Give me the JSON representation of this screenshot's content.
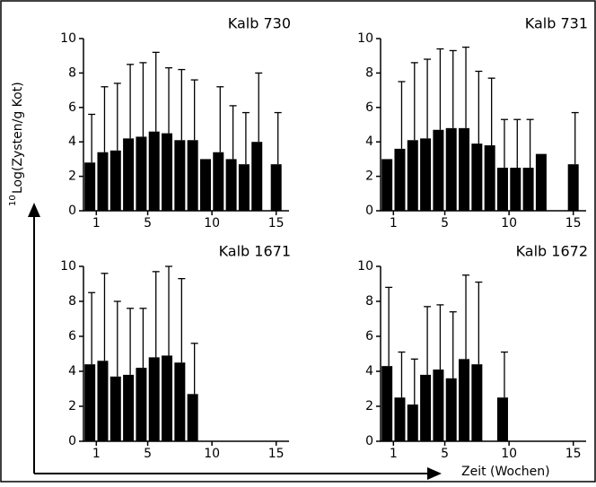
{
  "y_label_superscript": "10",
  "y_label": "Log(Zysten/g Kot)",
  "x_label": "Zeit (Wochen)",
  "chart_data": [
    {
      "type": "bar",
      "title": "Kalb 730",
      "color": "#000000",
      "xlim": [
        0,
        16
      ],
      "xticks": [
        1,
        5,
        10,
        15
      ],
      "ylim": [
        0,
        10
      ],
      "yticks": [
        0,
        2,
        4,
        6,
        8,
        10
      ],
      "x": [
        0.5,
        1.5,
        2.5,
        3.5,
        4.5,
        5.5,
        6.5,
        7.5,
        8.5,
        9.5,
        10.5,
        11.5,
        12.5,
        13.5,
        15
      ],
      "values": [
        2.8,
        3.4,
        3.5,
        4.2,
        4.3,
        4.6,
        4.5,
        4.1,
        4.1,
        3.0,
        3.4,
        3.0,
        2.7,
        4.0,
        2.7
      ],
      "errors": [
        2.8,
        3.8,
        3.9,
        4.3,
        4.3,
        4.6,
        3.8,
        4.1,
        3.5,
        null,
        3.8,
        3.1,
        3.0,
        4.0,
        3.0
      ]
    },
    {
      "type": "bar",
      "title": "Kalb 731",
      "color": "#000000",
      "xlim": [
        0,
        16
      ],
      "xticks": [
        1,
        5,
        10,
        15
      ],
      "ylim": [
        0,
        10
      ],
      "yticks": [
        0,
        2,
        4,
        6,
        8,
        10
      ],
      "x": [
        0.5,
        1.5,
        2.5,
        3.5,
        4.5,
        5.5,
        6.5,
        7.5,
        8.5,
        9.5,
        10.5,
        11.5,
        12.5,
        15
      ],
      "values": [
        3.0,
        3.6,
        4.1,
        4.2,
        4.7,
        4.8,
        4.8,
        3.9,
        3.8,
        2.5,
        2.5,
        2.5,
        3.3,
        2.7
      ],
      "errors": [
        null,
        3.9,
        4.5,
        4.6,
        4.7,
        4.5,
        4.7,
        4.2,
        3.9,
        2.8,
        2.8,
        2.8,
        null,
        3.0
      ]
    },
    {
      "type": "bar",
      "title": "Kalb 1671",
      "color": "#000000",
      "xlim": [
        0,
        16
      ],
      "xticks": [
        1,
        5,
        10,
        15
      ],
      "ylim": [
        0,
        10
      ],
      "yticks": [
        0,
        2,
        4,
        6,
        8,
        10
      ],
      "x": [
        0.5,
        1.5,
        2.5,
        3.5,
        4.5,
        5.5,
        6.5,
        7.5,
        8.5
      ],
      "values": [
        4.4,
        4.6,
        3.7,
        3.8,
        4.2,
        4.8,
        4.9,
        4.5,
        2.7
      ],
      "errors": [
        4.1,
        5.0,
        4.3,
        3.8,
        3.4,
        4.9,
        5.1,
        4.8,
        2.9
      ]
    },
    {
      "type": "bar",
      "title": "Kalb 1672",
      "color": "#000000",
      "xlim": [
        0,
        16
      ],
      "xticks": [
        1,
        5,
        10,
        15
      ],
      "ylim": [
        0,
        10
      ],
      "yticks": [
        0,
        2,
        4,
        6,
        8,
        10
      ],
      "x": [
        0.5,
        1.5,
        2.5,
        3.5,
        4.5,
        5.5,
        6.5,
        7.5,
        9.5
      ],
      "values": [
        4.3,
        2.5,
        2.1,
        3.8,
        4.1,
        3.6,
        4.7,
        4.4,
        2.5
      ],
      "errors": [
        4.5,
        2.6,
        2.6,
        3.9,
        3.7,
        3.8,
        4.8,
        4.7,
        2.6
      ]
    }
  ]
}
